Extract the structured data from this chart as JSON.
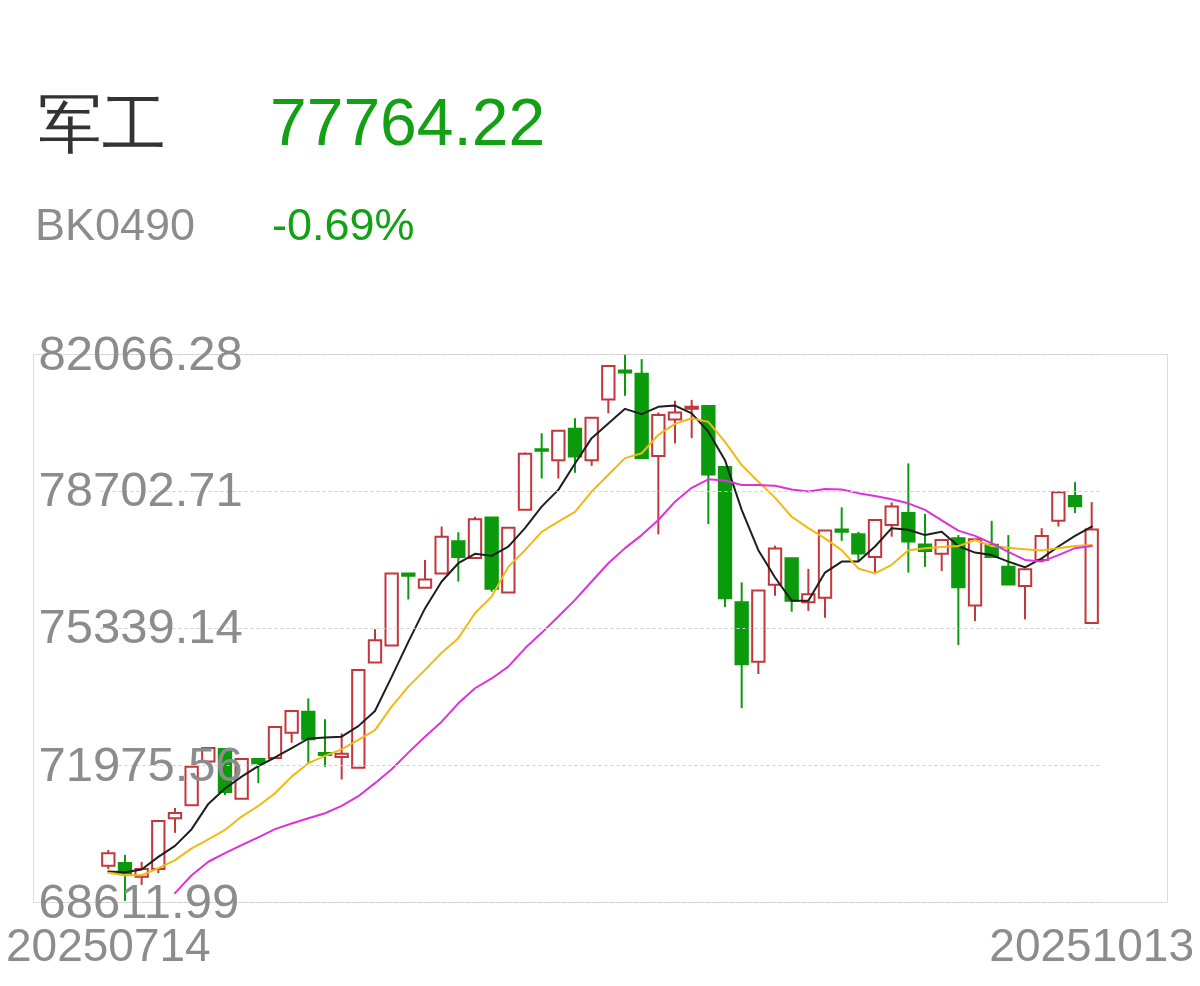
{
  "chart_data": {
    "type": "candlestick",
    "title": "军工",
    "subtitle": "BK0490",
    "annotations": [
      "77764.22",
      "-0.69%"
    ],
    "categories": [
      "20250714",
      null,
      null,
      null,
      null,
      null,
      null,
      null,
      null,
      null,
      null,
      null,
      null,
      null,
      null,
      null,
      null,
      null,
      null,
      null,
      null,
      null,
      null,
      null,
      null,
      null,
      null,
      null,
      null,
      null,
      null,
      null,
      null,
      null,
      null,
      null,
      null,
      null,
      null,
      null,
      null,
      null,
      null,
      null,
      null,
      null,
      null,
      null,
      null,
      null,
      null,
      null,
      null,
      null,
      null,
      null,
      null,
      null,
      null,
      "20251013"
    ],
    "ohlc": [
      [
        69500,
        69890,
        69420,
        69810
      ],
      [
        69570,
        69770,
        68640,
        69320
      ],
      [
        69230,
        69600,
        69030,
        69420
      ],
      [
        69420,
        70600,
        69320,
        70600
      ],
      [
        70670,
        70920,
        70310,
        70800
      ],
      [
        70990,
        71930,
        70990,
        71930
      ],
      [
        72060,
        72390,
        72060,
        72390
      ],
      [
        72370,
        72370,
        71240,
        71310
      ],
      [
        71150,
        72120,
        71150,
        72120
      ],
      [
        72120,
        72120,
        71530,
        72020
      ],
      [
        72150,
        72910,
        72150,
        72910
      ],
      [
        72770,
        73300,
        72520,
        73300
      ],
      [
        73280,
        73610,
        72020,
        72610
      ],
      [
        72270,
        73100,
        71930,
        72220
      ],
      [
        72170,
        72750,
        71620,
        72250
      ],
      [
        71910,
        74310,
        71910,
        74310
      ],
      [
        74490,
        75310,
        74490,
        75040
      ],
      [
        74910,
        76680,
        74910,
        76680
      ],
      [
        76680,
        76680,
        76040,
        76620
      ],
      [
        76330,
        77010,
        76330,
        76530
      ],
      [
        76680,
        77830,
        76680,
        77580
      ],
      [
        77470,
        77690,
        76480,
        77080
      ],
      [
        77060,
        78070,
        77060,
        78010
      ],
      [
        78050,
        78050,
        76230,
        76300
      ],
      [
        76210,
        77800,
        76210,
        77800
      ],
      [
        78240,
        79650,
        78240,
        79620
      ],
      [
        79730,
        80120,
        79010,
        79690
      ],
      [
        79460,
        80180,
        79010,
        80180
      ],
      [
        80230,
        80490,
        79150,
        79550
      ],
      [
        79460,
        80500,
        79320,
        80500
      ],
      [
        80950,
        81770,
        80610,
        81770
      ],
      [
        81660,
        82060,
        81040,
        81610
      ],
      [
        81580,
        81940,
        79510,
        79510
      ],
      [
        79560,
        80630,
        77640,
        80570
      ],
      [
        80460,
        80920,
        79870,
        80630
      ],
      [
        80720,
        80940,
        80000,
        80770
      ],
      [
        80790,
        80790,
        77890,
        79110
      ],
      [
        79290,
        79290,
        75850,
        76070
      ],
      [
        75970,
        76460,
        73370,
        74450
      ],
      [
        74510,
        76260,
        74210,
        76260
      ],
      [
        76400,
        77360,
        76130,
        77290
      ],
      [
        77050,
        77050,
        75740,
        76010
      ],
      [
        75970,
        76790,
        75760,
        76170
      ],
      [
        76080,
        77730,
        75590,
        77730
      ],
      [
        77760,
        78300,
        77480,
        77700
      ],
      [
        77640,
        77700,
        76970,
        77170
      ],
      [
        77080,
        77990,
        76700,
        77990
      ],
      [
        77870,
        78420,
        77580,
        78320
      ],
      [
        78160,
        79380,
        76700,
        77460
      ],
      [
        77390,
        78140,
        76840,
        77230
      ],
      [
        77160,
        77500,
        76740,
        77500
      ],
      [
        77540,
        77620,
        74920,
        76340
      ],
      [
        75890,
        77520,
        75510,
        77520
      ],
      [
        77380,
        77970,
        77080,
        77080
      ],
      [
        76840,
        77620,
        76410,
        76410
      ],
      [
        76370,
        76780,
        75550,
        76780
      ],
      [
        77010,
        77790,
        77010,
        77600
      ],
      [
        77970,
        78670,
        77830,
        78670
      ],
      [
        78580,
        78920,
        78160,
        78330
      ],
      [
        75460,
        78430,
        75460,
        77760
      ]
    ],
    "colors": [
      "#c3373c",
      "#0b9a0b",
      "#c3373c",
      "#c3373c",
      "#c3373c",
      "#c3373c",
      "#c3373c",
      "#0b9a0b",
      "#c3373c",
      "#0b9a0b",
      "#c3373c",
      "#c3373c",
      "#0b9a0b",
      "#0b9a0b",
      "#c3373c",
      "#c3373c",
      "#c3373c",
      "#c3373c",
      "#0b9a0b",
      "#c3373c",
      "#c3373c",
      "#0b9a0b",
      "#c3373c",
      "#0b9a0b",
      "#c3373c",
      "#c3373c",
      "#0b9a0b",
      "#c3373c",
      "#0b9a0b",
      "#c3373c",
      "#c3373c",
      "#0b9a0b",
      "#0b9a0b",
      "#c3373c",
      "#c3373c",
      "#c3373c",
      "#0b9a0b",
      "#0b9a0b",
      "#0b9a0b",
      "#c3373c",
      "#c3373c",
      "#0b9a0b",
      "#c3373c",
      "#c3373c",
      "#0b9a0b",
      "#0b9a0b",
      "#c3373c",
      "#c3373c",
      "#0b9a0b",
      "#0b9a0b",
      "#c3373c",
      "#0b9a0b",
      "#c3373c",
      "#0b9a0b",
      "#0b9a0b",
      "#c3373c",
      "#c3373c",
      "#c3373c",
      "#0b9a0b",
      "#c3373c"
    ],
    "series": [
      {
        "type": "line",
        "color": "#1e1e1e",
        "values": [
          69360,
          69340,
          69410,
          69720,
          69990,
          70400,
          71020,
          71400,
          71690,
          71950,
          72160,
          72390,
          72620,
          72650,
          72670,
          72930,
          73300,
          74140,
          75000,
          75820,
          76480,
          76930,
          77160,
          77110,
          77340,
          77790,
          78320,
          78730,
          79380,
          80000,
          80360,
          80720,
          80590,
          80770,
          80800,
          80610,
          80160,
          79460,
          78240,
          77250,
          76580,
          76010,
          76010,
          76700,
          76970,
          76970,
          77340,
          77790,
          77750,
          77620,
          77700,
          77350,
          77190,
          77130,
          76970,
          76830,
          77050,
          77340,
          77600,
          77830
        ]
      },
      {
        "type": "line",
        "color": "#f0b914",
        "values": [
          69330,
          69270,
          69270,
          69440,
          69640,
          69930,
          70150,
          70380,
          70710,
          70970,
          71280,
          71690,
          72020,
          72200,
          72360,
          72590,
          72830,
          73410,
          73900,
          74310,
          74730,
          75090,
          75700,
          76110,
          76840,
          77250,
          77700,
          77950,
          78190,
          78690,
          79100,
          79510,
          79630,
          80080,
          80350,
          80490,
          80400,
          79910,
          79340,
          78930,
          78540,
          78070,
          77790,
          77540,
          77250,
          76800,
          76680,
          76890,
          77250,
          77300,
          77330,
          77350,
          77500,
          77350,
          77310,
          77270,
          77240,
          77300,
          77350,
          77380
        ]
      },
      {
        "type": "line",
        "color": "#dc32dc",
        "values": [
          null,
          null,
          null,
          null,
          68830,
          69270,
          69600,
          69810,
          70010,
          70200,
          70400,
          70540,
          70670,
          70790,
          70970,
          71210,
          71530,
          71870,
          72280,
          72670,
          73040,
          73490,
          73860,
          74100,
          74390,
          74840,
          75220,
          75620,
          76030,
          76480,
          76930,
          77300,
          77620,
          77990,
          78440,
          78780,
          78990,
          78960,
          78850,
          78850,
          78830,
          78740,
          78690,
          78750,
          78740,
          78650,
          78580,
          78500,
          78400,
          78240,
          77980,
          77730,
          77600,
          77420,
          77210,
          77010,
          76970,
          77130,
          77300,
          77350
        ]
      }
    ],
    "ylim": [
      68611.99,
      82066.28
    ],
    "yticks": [
      68611.99,
      71975.56,
      75339.14,
      78702.71,
      82066.28
    ],
    "grid": "y"
  }
}
